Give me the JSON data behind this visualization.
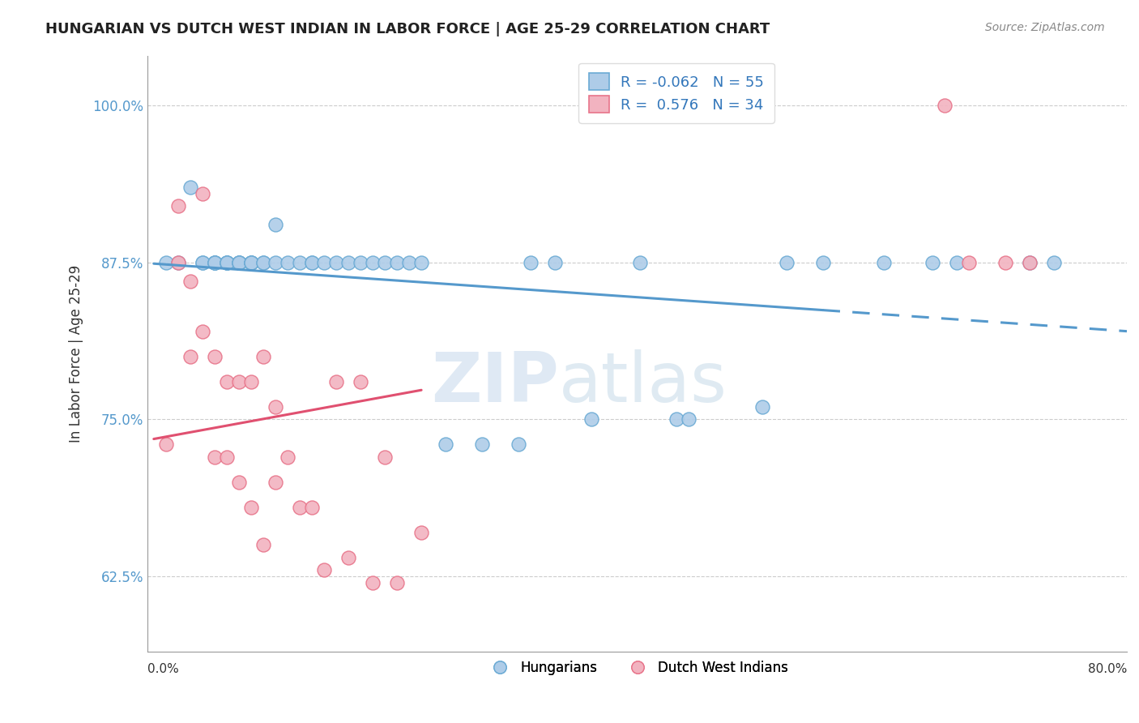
{
  "title": "HUNGARIAN VS DUTCH WEST INDIAN IN LABOR FORCE | AGE 25-29 CORRELATION CHART",
  "source": "Source: ZipAtlas.com",
  "ylabel": "In Labor Force | Age 25-29",
  "y_ticks": [
    0.625,
    0.75,
    0.875,
    1.0
  ],
  "y_tick_labels": [
    "62.5%",
    "75.0%",
    "87.5%",
    "100.0%"
  ],
  "xlim": [
    -0.005,
    0.8
  ],
  "ylim": [
    0.565,
    1.04
  ],
  "legend_r_blue": "-0.062",
  "legend_n_blue": "55",
  "legend_r_pink": "0.576",
  "legend_n_pink": "34",
  "legend_label_blue": "Hungarians",
  "legend_label_pink": "Dutch West Indians",
  "blue_color": "#aecce8",
  "pink_color": "#f2b3c0",
  "blue_edge_color": "#6aaad4",
  "pink_edge_color": "#e8748a",
  "blue_line_color": "#5599cc",
  "pink_line_color": "#e05070",
  "watermark_zip": "ZIP",
  "watermark_atlas": "atlas",
  "background_color": "#ffffff",
  "grid_color": "#cccccc",
  "blue_scatter_x": [
    0.01,
    0.02,
    0.03,
    0.04,
    0.04,
    0.05,
    0.05,
    0.05,
    0.05,
    0.06,
    0.06,
    0.06,
    0.06,
    0.07,
    0.07,
    0.07,
    0.07,
    0.08,
    0.08,
    0.08,
    0.08,
    0.09,
    0.09,
    0.1,
    0.1,
    0.11,
    0.12,
    0.13,
    0.13,
    0.14,
    0.15,
    0.16,
    0.17,
    0.18,
    0.19,
    0.2,
    0.21,
    0.22,
    0.24,
    0.27,
    0.3,
    0.31,
    0.33,
    0.36,
    0.4,
    0.43,
    0.44,
    0.5,
    0.52,
    0.55,
    0.6,
    0.64,
    0.66,
    0.72,
    0.74
  ],
  "blue_scatter_y": [
    0.875,
    0.875,
    0.935,
    0.875,
    0.875,
    0.875,
    0.875,
    0.875,
    0.875,
    0.875,
    0.875,
    0.875,
    0.875,
    0.875,
    0.875,
    0.875,
    0.875,
    0.875,
    0.875,
    0.875,
    0.875,
    0.875,
    0.875,
    0.905,
    0.875,
    0.875,
    0.875,
    0.875,
    0.875,
    0.875,
    0.875,
    0.875,
    0.875,
    0.875,
    0.875,
    0.875,
    0.875,
    0.875,
    0.73,
    0.73,
    0.73,
    0.875,
    0.875,
    0.75,
    0.875,
    0.75,
    0.75,
    0.76,
    0.875,
    0.875,
    0.875,
    0.875,
    0.875,
    0.875,
    0.875
  ],
  "pink_scatter_x": [
    0.01,
    0.02,
    0.02,
    0.03,
    0.03,
    0.04,
    0.04,
    0.05,
    0.05,
    0.06,
    0.06,
    0.07,
    0.07,
    0.08,
    0.08,
    0.09,
    0.09,
    0.1,
    0.1,
    0.11,
    0.12,
    0.13,
    0.14,
    0.15,
    0.16,
    0.17,
    0.18,
    0.19,
    0.2,
    0.22,
    0.65,
    0.67,
    0.7,
    0.72
  ],
  "pink_scatter_y": [
    0.73,
    0.92,
    0.875,
    0.86,
    0.8,
    0.93,
    0.82,
    0.8,
    0.72,
    0.78,
    0.72,
    0.78,
    0.7,
    0.68,
    0.78,
    0.8,
    0.65,
    0.7,
    0.76,
    0.72,
    0.68,
    0.68,
    0.63,
    0.78,
    0.64,
    0.78,
    0.62,
    0.72,
    0.62,
    0.66,
    1.0,
    0.875,
    0.875,
    0.875
  ]
}
